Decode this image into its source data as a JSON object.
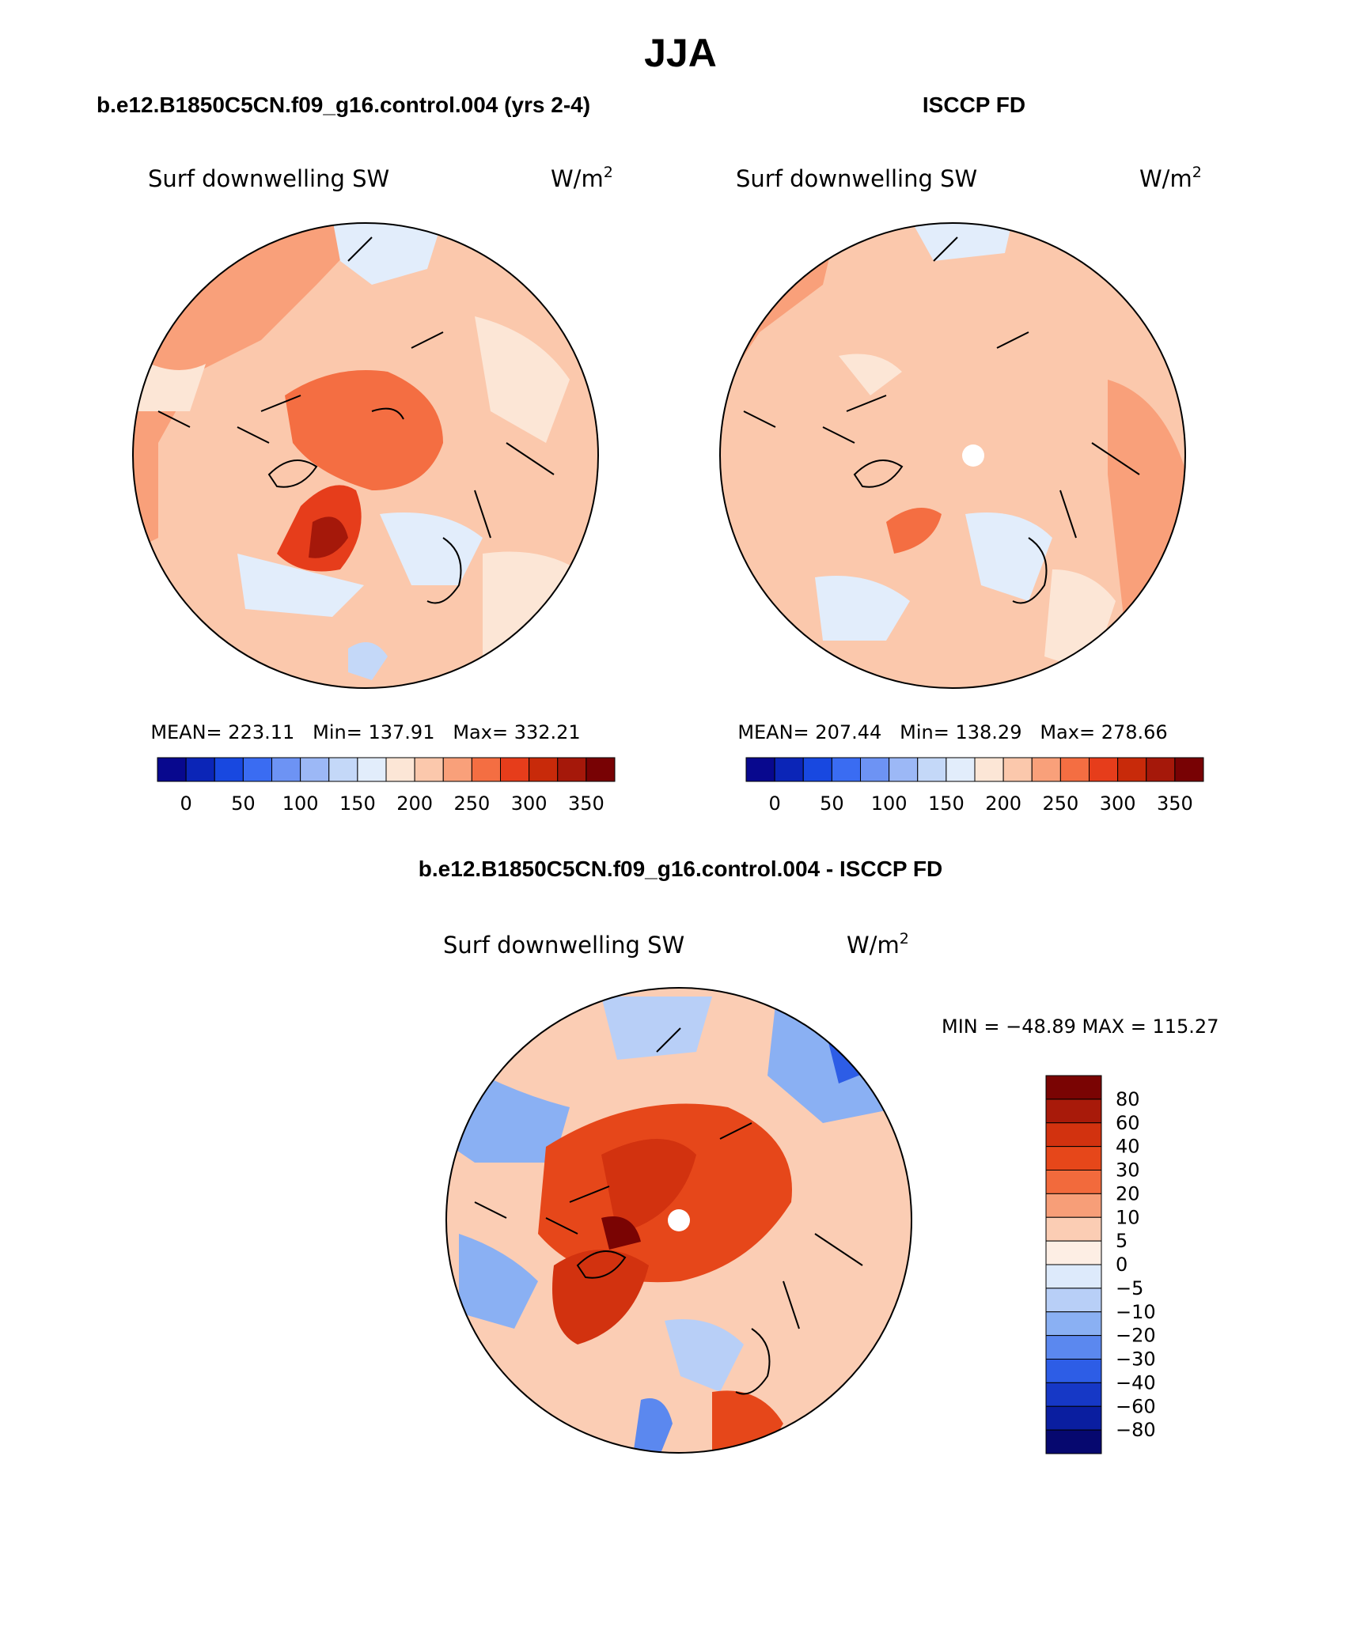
{
  "chart_data": {
    "type": "polar-contour-map",
    "title": "JJA",
    "panels": [
      {
        "id": "model",
        "header": "b.e12.B1850C5CN.f09_g16.control.004 (yrs 2-4)",
        "variable": "Surf downwelling SW",
        "units": "W/m",
        "units_exp": "2",
        "stats_text": "MEAN= 223.11   Min= 137.91   Max= 332.21",
        "stats": {
          "mean": 223.11,
          "min": 137.91,
          "max": 332.21
        },
        "colorbar": {
          "labels": [
            "0",
            "50",
            "100",
            "150",
            "200",
            "250",
            "300",
            "350"
          ],
          "levels": [
            0,
            25,
            50,
            75,
            100,
            125,
            150,
            175,
            200,
            225,
            250,
            275,
            300,
            325,
            350
          ],
          "colors": [
            "#08088e",
            "#0b25b7",
            "#1848e0",
            "#3a6cf2",
            "#6d93f4",
            "#9cb8f6",
            "#c4d8f8",
            "#e2edfb",
            "#fce6d6",
            "#fbc8ac",
            "#f9a07a",
            "#f46e42",
            "#e63d1b",
            "#c82a0a",
            "#a5180a",
            "#780204"
          ]
        }
      },
      {
        "id": "obs",
        "header": "ISCCP FD",
        "variable": "Surf downwelling SW",
        "units": "W/m",
        "units_exp": "2",
        "stats_text": "MEAN= 207.44   Min= 138.29   Max= 278.66",
        "stats": {
          "mean": 207.44,
          "min": 138.29,
          "max": 278.66
        },
        "colorbar": {
          "labels": [
            "0",
            "50",
            "100",
            "150",
            "200",
            "250",
            "300",
            "350"
          ],
          "levels": [
            0,
            25,
            50,
            75,
            100,
            125,
            150,
            175,
            200,
            225,
            250,
            275,
            300,
            325,
            350
          ],
          "colors": [
            "#08088e",
            "#0b25b7",
            "#1848e0",
            "#3a6cf2",
            "#6d93f4",
            "#9cb8f6",
            "#c4d8f8",
            "#e2edfb",
            "#fce6d6",
            "#fbc8ac",
            "#f9a07a",
            "#f46e42",
            "#e63d1b",
            "#c82a0a",
            "#a5180a",
            "#780204"
          ]
        }
      },
      {
        "id": "diff",
        "header": "b.e12.B1850C5CN.f09_g16.control.004 - ISCCP FD",
        "variable": "Surf downwelling SW",
        "units": "W/m",
        "units_exp": "2",
        "minmax_text": "MIN = −48.89 MAX = 115.27",
        "stats": {
          "min": -48.89,
          "max": 115.27
        },
        "colorbar": {
          "labels": [
            "80",
            "60",
            "40",
            "30",
            "20",
            "10",
            "5",
            "0",
            "−5",
            "−10",
            "−20",
            "−30",
            "−40",
            "−60",
            "−80"
          ],
          "levels": [
            80,
            60,
            40,
            30,
            20,
            10,
            5,
            0,
            -5,
            -10,
            -20,
            -30,
            -40,
            -60,
            -80
          ],
          "colors": [
            "#7a0403",
            "#a81a0a",
            "#d2320f",
            "#e6471a",
            "#f26a3c",
            "#f79e78",
            "#fbcdb4",
            "#fdeee4",
            "#ddeafb",
            "#b8cff7",
            "#8ab0f3",
            "#5b88ef",
            "#2d5de6",
            "#1638c6",
            "#0a1ea0",
            "#06086f"
          ]
        }
      }
    ]
  }
}
